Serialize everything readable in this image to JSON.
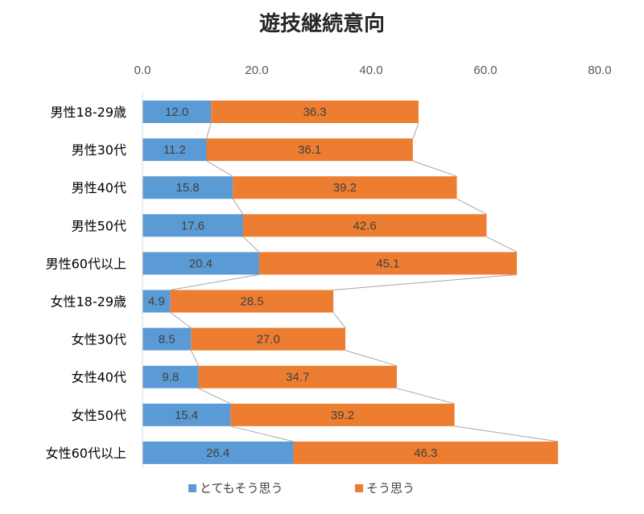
{
  "chart_data": {
    "type": "bar",
    "orientation": "horizontal",
    "stacked": true,
    "title": "遊技継続意向",
    "categories": [
      "男性18-29歳",
      "男性30代",
      "男性40代",
      "男性50代",
      "男性60代以上",
      "女性18-29歳",
      "女性30代",
      "女性40代",
      "女性50代",
      "女性60代以上"
    ],
    "series": [
      {
        "name": "とてもそう思う",
        "color": "#5B9BD5",
        "values": [
          12.0,
          11.2,
          15.8,
          17.6,
          20.4,
          4.9,
          8.5,
          9.8,
          15.4,
          26.4
        ]
      },
      {
        "name": "そう思う",
        "color": "#ED7D31",
        "values": [
          36.3,
          36.1,
          39.2,
          42.6,
          45.1,
          28.5,
          27.0,
          34.7,
          39.2,
          46.3
        ]
      }
    ],
    "xlim": [
      0,
      80
    ],
    "xticks": [
      "0.0",
      "20.0",
      "40.0",
      "60.0",
      "80.0"
    ],
    "axis_position": "top",
    "series_lines": true,
    "legend_position": "bottom",
    "grid": false
  }
}
